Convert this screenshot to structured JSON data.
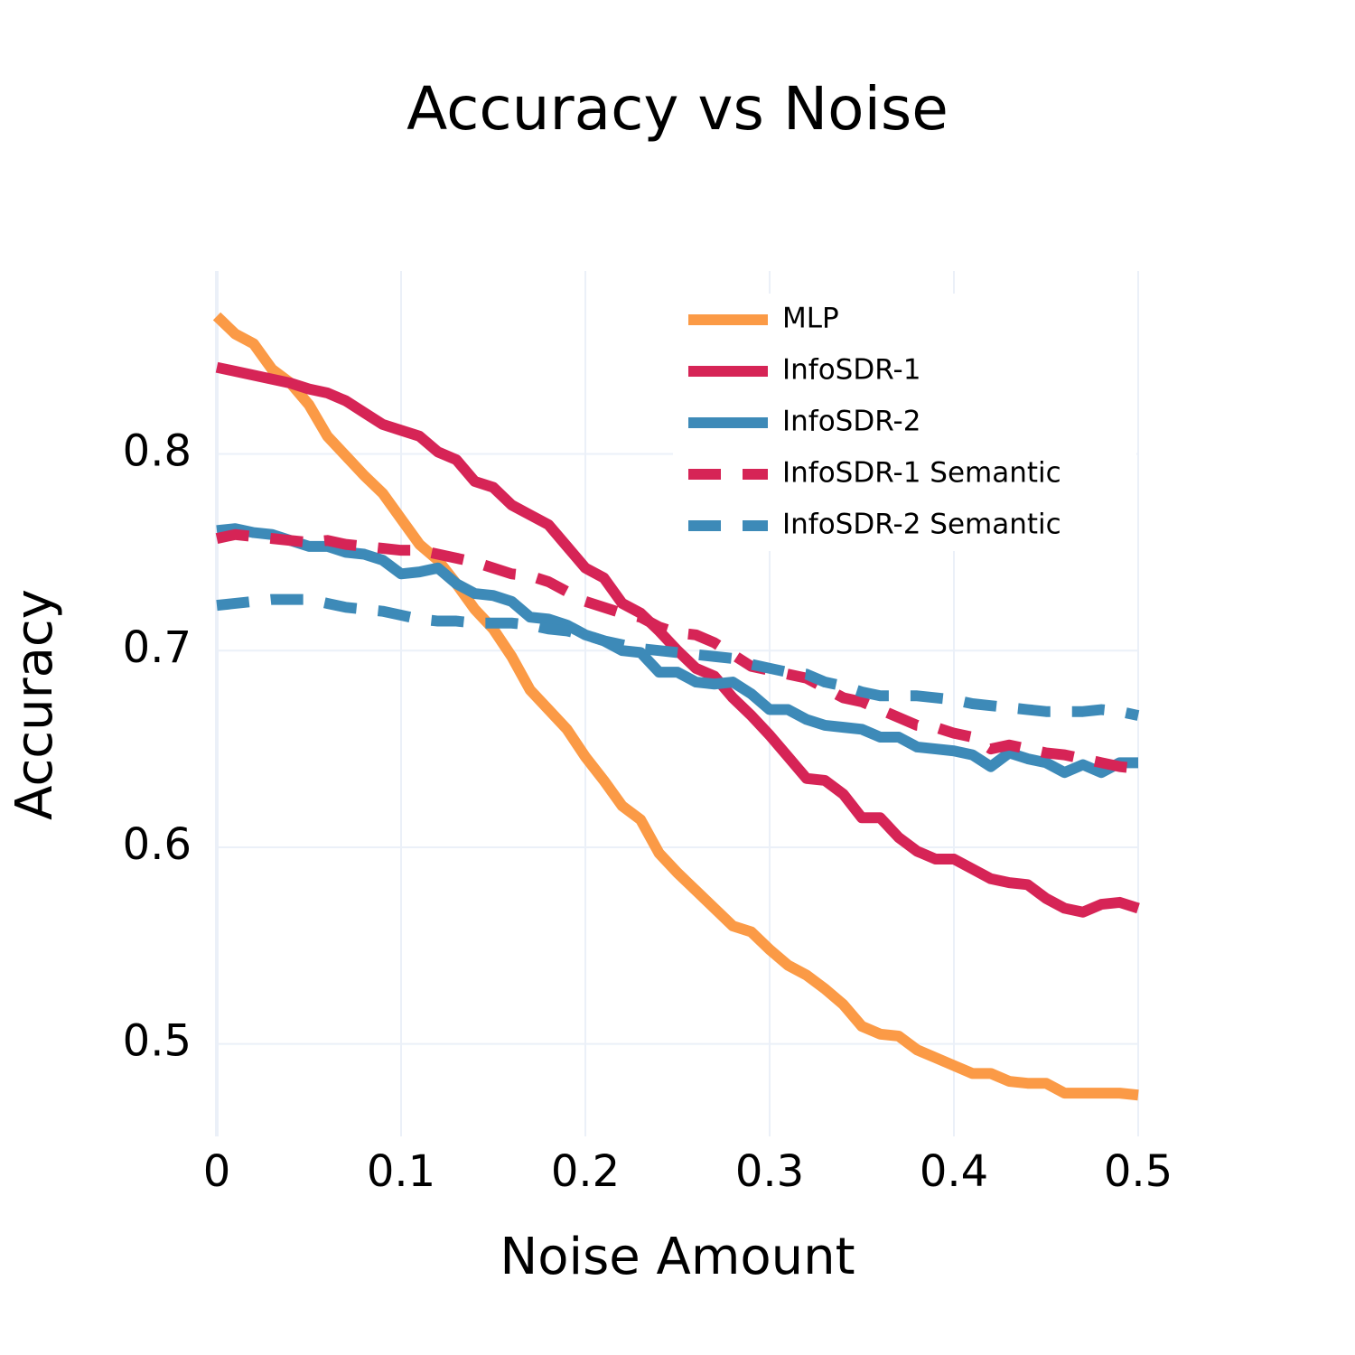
{
  "chart_data": {
    "type": "line",
    "title": "Accuracy vs Noise",
    "xlabel": "Noise Amount",
    "ylabel": "Accuracy",
    "x": [
      0,
      0.01,
      0.02,
      0.03,
      0.04,
      0.05,
      0.06,
      0.07,
      0.08,
      0.09,
      0.1,
      0.11,
      0.12,
      0.13,
      0.14,
      0.15,
      0.16,
      0.17,
      0.18,
      0.19,
      0.2,
      0.21,
      0.22,
      0.23,
      0.24,
      0.25,
      0.26,
      0.27,
      0.28,
      0.29,
      0.3,
      0.31,
      0.32,
      0.33,
      0.34,
      0.35,
      0.36,
      0.37,
      0.38,
      0.39,
      0.4,
      0.41,
      0.42,
      0.43,
      0.44,
      0.45,
      0.46,
      0.47,
      0.48,
      0.49,
      0.5
    ],
    "series": [
      {
        "name": "MLP",
        "color": "#fb9a46",
        "dash": false,
        "values": [
          0.87,
          0.861,
          0.856,
          0.843,
          0.836,
          0.825,
          0.809,
          0.799,
          0.789,
          0.78,
          0.767,
          0.754,
          0.746,
          0.734,
          0.721,
          0.711,
          0.697,
          0.68,
          0.67,
          0.66,
          0.646,
          0.634,
          0.621,
          0.614,
          0.597,
          0.587,
          0.578,
          0.569,
          0.56,
          0.557,
          0.548,
          0.54,
          0.535,
          0.528,
          0.52,
          0.509,
          0.505,
          0.504,
          0.497,
          0.493,
          0.489,
          0.485,
          0.485,
          0.481,
          0.48,
          0.48,
          0.475,
          0.475,
          0.475,
          0.475,
          0.474
        ]
      },
      {
        "name": "InfoSDR-1",
        "color": "#d62456",
        "dash": false,
        "values": [
          0.844,
          0.842,
          0.84,
          0.838,
          0.836,
          0.833,
          0.831,
          0.827,
          0.821,
          0.815,
          0.812,
          0.809,
          0.801,
          0.797,
          0.786,
          0.783,
          0.774,
          0.769,
          0.764,
          0.753,
          0.742,
          0.737,
          0.724,
          0.719,
          0.71,
          0.7,
          0.691,
          0.687,
          0.676,
          0.667,
          0.657,
          0.646,
          0.635,
          0.634,
          0.627,
          0.615,
          0.615,
          0.605,
          0.598,
          0.594,
          0.594,
          0.589,
          0.584,
          0.582,
          0.581,
          0.574,
          0.569,
          0.567,
          0.571,
          0.572,
          0.569
        ]
      },
      {
        "name": "InfoSDR-2",
        "color": "#3d8ab8",
        "dash": false,
        "values": [
          0.761,
          0.762,
          0.76,
          0.759,
          0.756,
          0.753,
          0.753,
          0.75,
          0.749,
          0.746,
          0.739,
          0.74,
          0.742,
          0.734,
          0.729,
          0.728,
          0.725,
          0.717,
          0.716,
          0.713,
          0.708,
          0.705,
          0.7,
          0.699,
          0.689,
          0.689,
          0.684,
          0.683,
          0.684,
          0.678,
          0.67,
          0.67,
          0.665,
          0.662,
          0.661,
          0.66,
          0.656,
          0.656,
          0.651,
          0.65,
          0.649,
          0.647,
          0.641,
          0.648,
          0.645,
          0.643,
          0.638,
          0.642,
          0.638,
          0.643,
          0.643
        ]
      },
      {
        "name": "InfoSDR-1 Semantic",
        "color": "#d62456",
        "dash": true,
        "values": [
          0.757,
          0.759,
          0.758,
          0.757,
          0.756,
          0.755,
          0.756,
          0.754,
          0.753,
          0.752,
          0.751,
          0.751,
          0.749,
          0.747,
          0.745,
          0.742,
          0.739,
          0.738,
          0.735,
          0.73,
          0.725,
          0.722,
          0.719,
          0.717,
          0.712,
          0.709,
          0.708,
          0.704,
          0.698,
          0.692,
          0.69,
          0.688,
          0.686,
          0.681,
          0.676,
          0.674,
          0.67,
          0.666,
          0.662,
          0.661,
          0.658,
          0.656,
          0.65,
          0.652,
          0.65,
          0.648,
          0.647,
          0.645,
          0.643,
          0.641,
          0.64
        ]
      },
      {
        "name": "InfoSDR-2 Semantic",
        "color": "#3d8ab8",
        "dash": true,
        "values": [
          0.723,
          0.724,
          0.725,
          0.726,
          0.726,
          0.726,
          0.724,
          0.722,
          0.721,
          0.72,
          0.718,
          0.716,
          0.715,
          0.715,
          0.714,
          0.714,
          0.714,
          0.713,
          0.711,
          0.71,
          0.708,
          0.705,
          0.703,
          0.701,
          0.7,
          0.699,
          0.698,
          0.697,
          0.696,
          0.693,
          0.691,
          0.689,
          0.688,
          0.684,
          0.682,
          0.679,
          0.677,
          0.677,
          0.677,
          0.676,
          0.675,
          0.673,
          0.672,
          0.671,
          0.67,
          0.669,
          0.669,
          0.669,
          0.67,
          0.669,
          0.667
        ]
      }
    ],
    "xlim": [
      0,
      0.5
    ],
    "xticks": [
      0,
      0.1,
      0.2,
      0.3,
      0.4,
      0.5
    ],
    "ylim": [
      0.453,
      0.893
    ],
    "yticks": [
      0.5,
      0.6,
      0.7,
      0.8
    ],
    "grid": true,
    "legend": "top-right"
  }
}
